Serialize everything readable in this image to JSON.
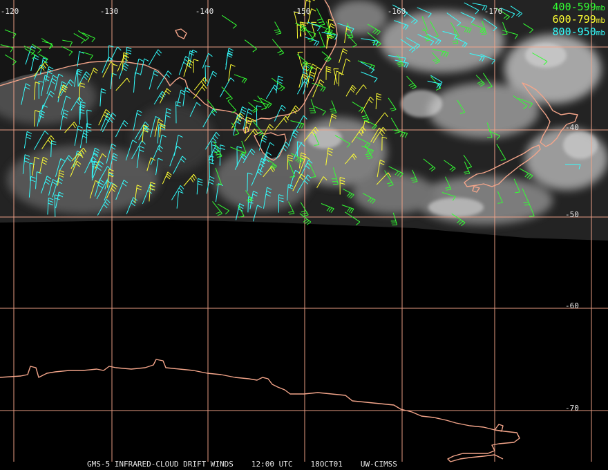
{
  "colors": {
    "grid": "#f4a58a",
    "coast": "#f4a58a",
    "layer_400_599": "#33ff33",
    "layer_600_799": "#ffff33",
    "layer_800_950": "#33ffff",
    "background": "#000000"
  },
  "longitude_labels": [
    "-120",
    "-130",
    "-140",
    "-150",
    "-160",
    "-170"
  ],
  "latitude_labels": [
    "-40",
    "-50",
    "-60",
    "-70"
  ],
  "legend": [
    {
      "range": "400-599",
      "unit": "mb",
      "color": "#33ff33"
    },
    {
      "range": "600-799",
      "unit": "mb",
      "color": "#ffff33"
    },
    {
      "range": "800-950",
      "unit": "mb",
      "color": "#33ffff"
    }
  ],
  "footer": {
    "product": "GMS-5 INFRARED-CLOUD DRIFT WINDS",
    "time": "12:00 UTC",
    "date": "18OCT01",
    "source": "UW-CIMSS"
  }
}
